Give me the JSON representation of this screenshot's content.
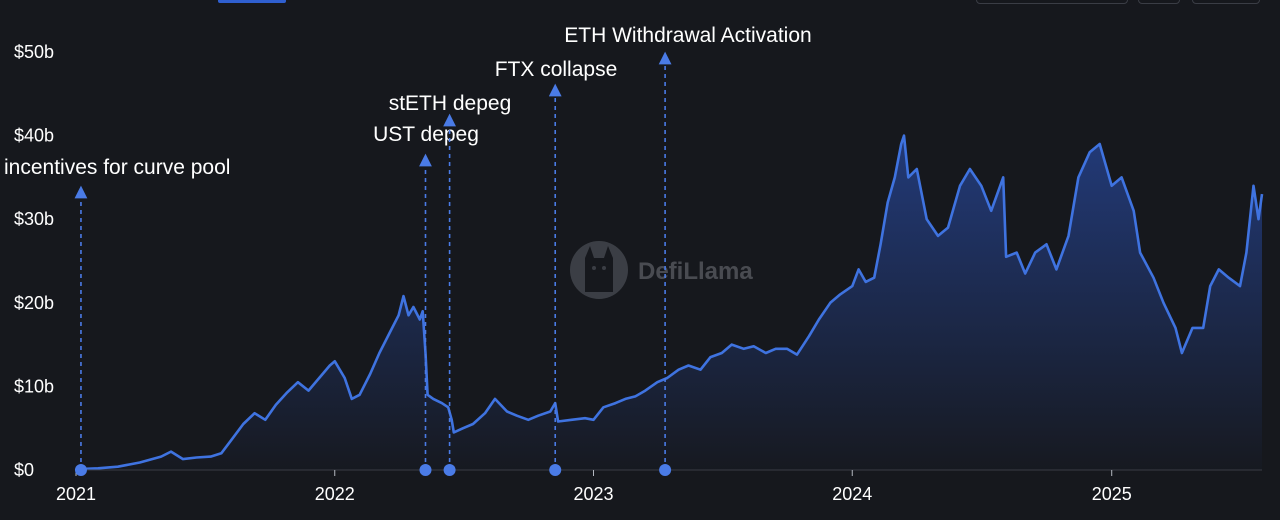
{
  "watermark": {
    "text": "DefiLlama",
    "icon": "llama-logo-icon"
  },
  "colors": {
    "background": "#16181d",
    "line": "#3f73e0",
    "fill_top": "#2c56c4",
    "annotation": "#4a7be6",
    "text": "#ffffff"
  },
  "chart_data": {
    "type": "area",
    "title": "",
    "xlabel": "",
    "ylabel": "",
    "grid": false,
    "y_unit": "$",
    "ylim": [
      0,
      50
    ],
    "xlim": [
      "2021-01-01",
      "2025-08-01"
    ],
    "x_ticks": [
      "2021",
      "2022",
      "2023",
      "2024",
      "2025"
    ],
    "y_ticks": [
      "$0",
      "$10b",
      "$20b",
      "$30b",
      "$40b",
      "$50b"
    ],
    "series": [
      {
        "values_unit": "billions USD",
        "points": [
          [
            "2021-01-01",
            0.1
          ],
          [
            "2021-02-01",
            0.2
          ],
          [
            "2021-03-01",
            0.4
          ],
          [
            "2021-04-01",
            0.9
          ],
          [
            "2021-05-01",
            1.6
          ],
          [
            "2021-05-15",
            2.2
          ],
          [
            "2021-06-01",
            1.3
          ],
          [
            "2021-06-20",
            1.5
          ],
          [
            "2021-07-10",
            1.6
          ],
          [
            "2021-07-25",
            2.0
          ],
          [
            "2021-08-10",
            3.8
          ],
          [
            "2021-08-25",
            5.5
          ],
          [
            "2021-09-10",
            6.8
          ],
          [
            "2021-09-25",
            6.0
          ],
          [
            "2021-10-10",
            7.8
          ],
          [
            "2021-10-25",
            9.2
          ],
          [
            "2021-11-10",
            10.5
          ],
          [
            "2021-11-25",
            9.5
          ],
          [
            "2021-12-10",
            11.0
          ],
          [
            "2021-12-25",
            12.5
          ],
          [
            "2022-01-01",
            13.0
          ],
          [
            "2022-01-15",
            11.0
          ],
          [
            "2022-01-25",
            8.5
          ],
          [
            "2022-02-05",
            9.0
          ],
          [
            "2022-02-20",
            11.5
          ],
          [
            "2022-03-05",
            14.0
          ],
          [
            "2022-03-20",
            16.5
          ],
          [
            "2022-04-01",
            18.5
          ],
          [
            "2022-04-08",
            20.8
          ],
          [
            "2022-04-15",
            18.5
          ],
          [
            "2022-04-22",
            19.5
          ],
          [
            "2022-05-01",
            18.0
          ],
          [
            "2022-05-05",
            19.0
          ],
          [
            "2022-05-09",
            14.0
          ],
          [
            "2022-05-12",
            9.0
          ],
          [
            "2022-05-20",
            8.5
          ],
          [
            "2022-06-01",
            8.0
          ],
          [
            "2022-06-10",
            7.5
          ],
          [
            "2022-06-15",
            6.0
          ],
          [
            "2022-06-18",
            4.5
          ],
          [
            "2022-07-01",
            5.0
          ],
          [
            "2022-07-15",
            5.5
          ],
          [
            "2022-08-01",
            6.8
          ],
          [
            "2022-08-15",
            8.5
          ],
          [
            "2022-09-01",
            7.0
          ],
          [
            "2022-09-15",
            6.5
          ],
          [
            "2022-10-01",
            6.0
          ],
          [
            "2022-10-15",
            6.5
          ],
          [
            "2022-11-01",
            7.0
          ],
          [
            "2022-11-08",
            8.0
          ],
          [
            "2022-11-12",
            5.8
          ],
          [
            "2022-12-01",
            6.0
          ],
          [
            "2022-12-20",
            6.2
          ],
          [
            "2023-01-01",
            6.0
          ],
          [
            "2023-01-15",
            7.5
          ],
          [
            "2023-02-01",
            8.0
          ],
          [
            "2023-02-15",
            8.5
          ],
          [
            "2023-03-01",
            8.8
          ],
          [
            "2023-03-15",
            9.5
          ],
          [
            "2023-04-01",
            10.5
          ],
          [
            "2023-04-15",
            11.0
          ],
          [
            "2023-05-01",
            12.0
          ],
          [
            "2023-05-15",
            12.5
          ],
          [
            "2023-06-01",
            12.0
          ],
          [
            "2023-06-15",
            13.5
          ],
          [
            "2023-07-01",
            14.0
          ],
          [
            "2023-07-15",
            15.0
          ],
          [
            "2023-08-01",
            14.5
          ],
          [
            "2023-08-15",
            14.8
          ],
          [
            "2023-09-01",
            14.0
          ],
          [
            "2023-09-15",
            14.5
          ],
          [
            "2023-10-01",
            14.5
          ],
          [
            "2023-10-15",
            13.8
          ],
          [
            "2023-11-01",
            16.0
          ],
          [
            "2023-11-15",
            18.0
          ],
          [
            "2023-12-01",
            20.0
          ],
          [
            "2023-12-15",
            21.0
          ],
          [
            "2024-01-01",
            22.0
          ],
          [
            "2024-01-10",
            24.0
          ],
          [
            "2024-01-20",
            22.5
          ],
          [
            "2024-02-01",
            23.0
          ],
          [
            "2024-02-10",
            27.0
          ],
          [
            "2024-02-20",
            32.0
          ],
          [
            "2024-03-01",
            35.0
          ],
          [
            "2024-03-10",
            39.0
          ],
          [
            "2024-03-14",
            40.0
          ],
          [
            "2024-03-20",
            35.0
          ],
          [
            "2024-04-01",
            36.0
          ],
          [
            "2024-04-15",
            30.0
          ],
          [
            "2024-05-01",
            28.0
          ],
          [
            "2024-05-15",
            29.0
          ],
          [
            "2024-06-01",
            34.0
          ],
          [
            "2024-06-15",
            36.0
          ],
          [
            "2024-07-01",
            34.0
          ],
          [
            "2024-07-15",
            31.0
          ],
          [
            "2024-08-01",
            35.0
          ],
          [
            "2024-08-05",
            25.5
          ],
          [
            "2024-08-20",
            26.0
          ],
          [
            "2024-09-01",
            23.5
          ],
          [
            "2024-09-15",
            26.0
          ],
          [
            "2024-10-01",
            27.0
          ],
          [
            "2024-10-15",
            24.0
          ],
          [
            "2024-11-01",
            28.0
          ],
          [
            "2024-11-15",
            35.0
          ],
          [
            "2024-12-01",
            38.0
          ],
          [
            "2024-12-15",
            39.0
          ],
          [
            "2025-01-01",
            34.0
          ],
          [
            "2025-01-15",
            35.0
          ],
          [
            "2025-02-01",
            31.0
          ],
          [
            "2025-02-10",
            26.0
          ],
          [
            "2025-03-01",
            23.0
          ],
          [
            "2025-03-15",
            20.0
          ],
          [
            "2025-04-01",
            17.0
          ],
          [
            "2025-04-10",
            14.0
          ],
          [
            "2025-04-25",
            17.0
          ],
          [
            "2025-05-10",
            17.0
          ],
          [
            "2025-05-20",
            22.0
          ],
          [
            "2025-06-01",
            24.0
          ],
          [
            "2025-06-15",
            23.0
          ],
          [
            "2025-07-01",
            22.0
          ],
          [
            "2025-07-10",
            26.0
          ],
          [
            "2025-07-20",
            34.0
          ],
          [
            "2025-07-27",
            30.0
          ],
          [
            "2025-08-01",
            33.0
          ]
        ]
      }
    ],
    "annotations": [
      {
        "date": "2021-01-08",
        "label": "incentives for curve pool"
      },
      {
        "date": "2022-05-09",
        "label": "UST depeg"
      },
      {
        "date": "2022-06-12",
        "label": "stETH depeg"
      },
      {
        "date": "2022-11-08",
        "label": "FTX collapse"
      },
      {
        "date": "2023-04-12",
        "label": "ETH Withdrawal Activation"
      }
    ]
  }
}
